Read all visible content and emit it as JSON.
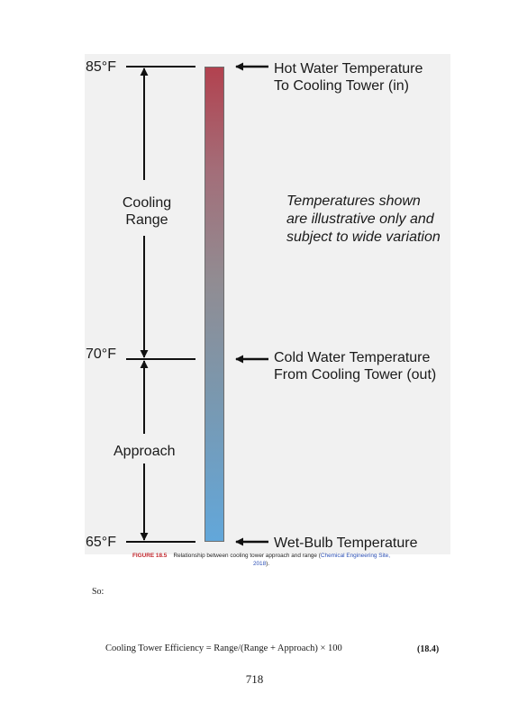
{
  "diagram": {
    "temperatures": {
      "top": "85°F",
      "middle": "70°F",
      "bottom": "65°F"
    },
    "labels": {
      "hot_water_line1": "Hot Water Temperature",
      "hot_water_line2": "To Cooling Tower (in)",
      "cold_water_line1": "Cold Water Temperature",
      "cold_water_line2": "From Cooling Tower (out)",
      "wet_bulb": "Wet-Bulb Temperature",
      "range_line1": "Cooling",
      "range_line2": "Range",
      "approach": "Approach",
      "note_line1": "Temperatures shown",
      "note_line2": "are illustrative only and",
      "note_line3": "subject to wide variation"
    },
    "colors": {
      "hot": "#b2424f",
      "cold": "#62a7da"
    }
  },
  "caption": {
    "figure_number": "FIGURE 18.5",
    "text": "Relationship between cooling tower approach and range (",
    "source_link": "Chemical Engineering Site",
    "source_end": ",",
    "year_link": "2018",
    "closing": ")."
  },
  "body": {
    "so_text": "So:",
    "equation": "Cooling Tower Efficiency = Range/(Range + Approach) × 100",
    "equation_number": "(18.4)",
    "page_number": "718"
  }
}
